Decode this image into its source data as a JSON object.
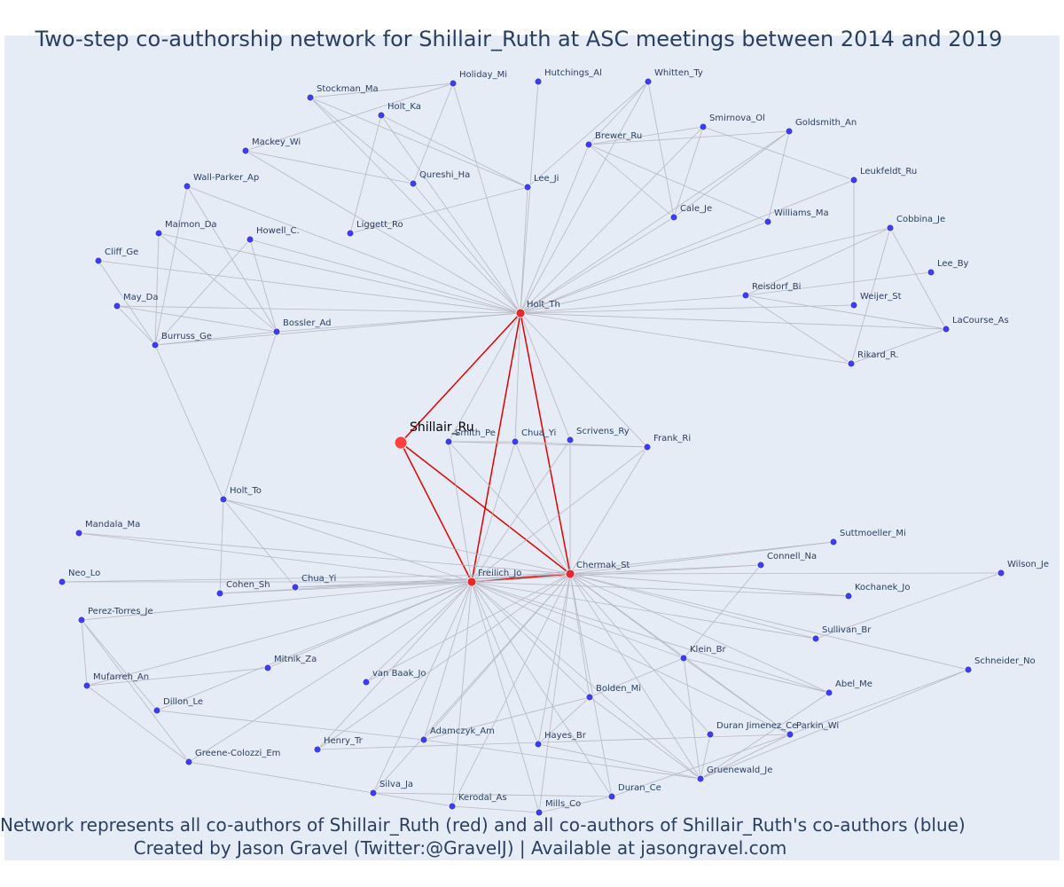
{
  "title": "Two-step co-authorship network for Shillair_Ruth at ASC meetings between 2014 and 2019",
  "captions": {
    "line1": "Network represents all co-authors of Shillair_Ruth (red) and all co-authors of Shillair_Ruth's co-authors (blue)",
    "line2": "Created by Jason Gravel (Twitter:@GravelJ) | Available at jasongravel.com"
  },
  "colors": {
    "focal": "#ff4040",
    "coauthor": "#e8262b",
    "second_step": "#3d3df0",
    "edge": "#b7b7c4",
    "red_edge": "#e00000",
    "background": "#e5ecf6"
  },
  "nodes": [
    {
      "id": "Shillair_Ru",
      "label": "Shillair_Ru",
      "group": "focal"
    },
    {
      "id": "Holt_Th",
      "label": "Holt_Th",
      "group": "coauthor"
    },
    {
      "id": "Freilich_Jo",
      "label": "Freilich_Jo",
      "group": "coauthor"
    },
    {
      "id": "Chermak_St",
      "label": "Chermak_St",
      "group": "coauthor"
    },
    {
      "id": "Holiday_Mi",
      "label": "Holiday_Mi",
      "group": "second"
    },
    {
      "id": "Hutchings_Al",
      "label": "Hutchings_Al",
      "group": "second"
    },
    {
      "id": "Whitten_Ty",
      "label": "Whitten_Ty",
      "group": "second"
    },
    {
      "id": "Stockman_Ma",
      "label": "Stockman_Ma",
      "group": "second"
    },
    {
      "id": "Holt_Ka",
      "label": "Holt_Ka",
      "group": "second"
    },
    {
      "id": "Smirnova_Ol",
      "label": "Smirnova_Ol",
      "group": "second"
    },
    {
      "id": "Goldsmith_An",
      "label": "Goldsmith_An",
      "group": "second"
    },
    {
      "id": "Brewer_Ru",
      "label": "Brewer_Ru",
      "group": "second"
    },
    {
      "id": "Mackey_Wi",
      "label": "Mackey_Wi",
      "group": "second"
    },
    {
      "id": "Qureshi_Ha",
      "label": "Qureshi_Ha",
      "group": "second"
    },
    {
      "id": "Lee_Ji",
      "label": "Lee_Ji",
      "group": "second"
    },
    {
      "id": "Leukfeldt_Ru",
      "label": "Leukfeldt_Ru",
      "group": "second"
    },
    {
      "id": "Wall-Parker_Ap",
      "label": "Wall-Parker_Ap",
      "group": "second"
    },
    {
      "id": "Cale_Je",
      "label": "Cale_Je",
      "group": "second"
    },
    {
      "id": "Williams_Ma",
      "label": "Williams_Ma",
      "group": "second"
    },
    {
      "id": "Maimon_Da",
      "label": "Maimon_Da",
      "group": "second"
    },
    {
      "id": "Liggett_Ro",
      "label": "Liggett_Ro",
      "group": "second"
    },
    {
      "id": "Howell_C",
      "label": "Howell_C.",
      "group": "second"
    },
    {
      "id": "Cobbina_Je",
      "label": "Cobbina_Je",
      "group": "second"
    },
    {
      "id": "Cliff_Ge",
      "label": "Cliff_Ge",
      "group": "second"
    },
    {
      "id": "Lee_By",
      "label": "Lee_By",
      "group": "second"
    },
    {
      "id": "Reisdorf_Bi",
      "label": "Reisdorf_Bi",
      "group": "second"
    },
    {
      "id": "May_Da",
      "label": "May_Da",
      "group": "second"
    },
    {
      "id": "Weijer_St",
      "label": "Weijer_St",
      "group": "second"
    },
    {
      "id": "Bossler_Ad",
      "label": "Bossler_Ad",
      "group": "second"
    },
    {
      "id": "LaCourse_As",
      "label": "LaCourse_As",
      "group": "second"
    },
    {
      "id": "Burruss_Ge",
      "label": "Burruss_Ge",
      "group": "second"
    },
    {
      "id": "Rikard_R",
      "label": "Rikard_R.",
      "group": "second"
    },
    {
      "id": "Smith_Pe",
      "label": "Smith_Pe",
      "group": "second"
    },
    {
      "id": "Chua_Yi_a",
      "label": "Chua_Yi",
      "group": "second"
    },
    {
      "id": "Scrivens_Ry",
      "label": "Scrivens_Ry",
      "group": "second"
    },
    {
      "id": "Frank_Ri",
      "label": "Frank_Ri",
      "group": "second"
    },
    {
      "id": "Holt_To",
      "label": "Holt_To",
      "group": "second"
    },
    {
      "id": "Mandala_Ma",
      "label": "Mandala_Ma",
      "group": "second"
    },
    {
      "id": "Suttmoeller_Mi",
      "label": "Suttmoeller_Mi",
      "group": "second"
    },
    {
      "id": "Connell_Na",
      "label": "Connell_Na",
      "group": "second"
    },
    {
      "id": "Wilson_Je",
      "label": "Wilson_Je",
      "group": "second"
    },
    {
      "id": "Neo_Lo",
      "label": "Neo_Lo",
      "group": "second"
    },
    {
      "id": "Cohen_Sh",
      "label": "Cohen_Sh",
      "group": "second"
    },
    {
      "id": "Chua_Yi_b",
      "label": "Chua_Yi",
      "group": "second"
    },
    {
      "id": "Kochanek_Jo",
      "label": "Kochanek_Jo",
      "group": "second"
    },
    {
      "id": "Perez-Torres_Je",
      "label": "Perez-Torres_Je",
      "group": "second"
    },
    {
      "id": "Sullivan_Br",
      "label": "Sullivan_Br",
      "group": "second"
    },
    {
      "id": "Klein_Br",
      "label": "Klein_Br",
      "group": "second"
    },
    {
      "id": "Mitnik_Za",
      "label": "Mitnik_Za",
      "group": "second"
    },
    {
      "id": "Schneider_No",
      "label": "Schneider_No",
      "group": "second"
    },
    {
      "id": "Mufarreh_An",
      "label": "Mufarreh_An",
      "group": "second"
    },
    {
      "id": "van_Baak_Jo",
      "label": "van Baak_Jo",
      "group": "second"
    },
    {
      "id": "Abel_Me",
      "label": "Abel_Me",
      "group": "second"
    },
    {
      "id": "Bolden_Mi",
      "label": "Bolden_Mi",
      "group": "second"
    },
    {
      "id": "Dillon_Le",
      "label": "Dillon_Le",
      "group": "second"
    },
    {
      "id": "Adamczyk_Am",
      "label": "Adamczyk_Am",
      "group": "second"
    },
    {
      "id": "Duran_Jimenez_Ce",
      "label": "Duran Jimenez_Ce",
      "group": "second"
    },
    {
      "id": "Parkin_Wi",
      "label": "Parkin_Wi",
      "group": "second"
    },
    {
      "id": "Hayes_Br",
      "label": "Hayes_Br",
      "group": "second"
    },
    {
      "id": "Henry_Tr",
      "label": "Henry_Tr",
      "group": "second"
    },
    {
      "id": "Greene-Colozzi_Em",
      "label": "Greene-Colozzi_Em",
      "group": "second"
    },
    {
      "id": "Gruenewald_Je",
      "label": "Gruenewald_Je",
      "group": "second"
    },
    {
      "id": "Silva_Ja",
      "label": "Silva_Ja",
      "group": "second"
    },
    {
      "id": "Duran_Ce",
      "label": "Duran_Ce",
      "group": "second"
    },
    {
      "id": "Kerodal_As",
      "label": "Kerodal_As",
      "group": "second"
    },
    {
      "id": "Mills_Co",
      "label": "Mills_Co",
      "group": "second"
    }
  ],
  "edges": [
    [
      "Shillair_Ru",
      "Holt_Th"
    ],
    [
      "Shillair_Ru",
      "Freilich_Jo"
    ],
    [
      "Shillair_Ru",
      "Chermak_St"
    ],
    [
      "Holt_Th",
      "Freilich_Jo"
    ],
    [
      "Holt_Th",
      "Chermak_St"
    ],
    [
      "Freilich_Jo",
      "Chermak_St"
    ],
    [
      "Holt_Th",
      "Holiday_Mi"
    ],
    [
      "Holt_Th",
      "Hutchings_Al"
    ],
    [
      "Holt_Th",
      "Whitten_Ty"
    ],
    [
      "Holt_Th",
      "Stockman_Ma"
    ],
    [
      "Holt_Th",
      "Holt_Ka"
    ],
    [
      "Holt_Th",
      "Smirnova_Ol"
    ],
    [
      "Holt_Th",
      "Goldsmith_An"
    ],
    [
      "Holt_Th",
      "Brewer_Ru"
    ],
    [
      "Holt_Th",
      "Mackey_Wi"
    ],
    [
      "Holt_Th",
      "Qureshi_Ha"
    ],
    [
      "Holt_Th",
      "Lee_Ji"
    ],
    [
      "Holt_Th",
      "Wall-Parker_Ap"
    ],
    [
      "Holt_Th",
      "Cale_Je"
    ],
    [
      "Holt_Th",
      "Williams_Ma"
    ],
    [
      "Holt_Th",
      "Maimon_Da"
    ],
    [
      "Holt_Th",
      "Howell_C"
    ],
    [
      "Holt_Th",
      "Cliff_Ge"
    ],
    [
      "Holt_Th",
      "Reisdorf_Bi"
    ],
    [
      "Holt_Th",
      "May_Da"
    ],
    [
      "Holt_Th",
      "Weijer_St"
    ],
    [
      "Holt_Th",
      "Bossler_Ad"
    ],
    [
      "Holt_Th",
      "LaCourse_As"
    ],
    [
      "Holt_Th",
      "Burruss_Ge"
    ],
    [
      "Holt_Th",
      "Rikard_R"
    ],
    [
      "Holt_Th",
      "Smith_Pe"
    ],
    [
      "Holt_Th",
      "Chua_Yi_a"
    ],
    [
      "Holt_Th",
      "Scrivens_Ry"
    ],
    [
      "Holt_Th",
      "Frank_Ri"
    ],
    [
      "Holt_Th",
      "Leukfeldt_Ru"
    ],
    [
      "Holt_Th",
      "Cobbina_Je"
    ],
    [
      "Holiday_Mi",
      "Stockman_Ma"
    ],
    [
      "Holiday_Mi",
      "Mackey_Wi"
    ],
    [
      "Holiday_Mi",
      "Qureshi_Ha"
    ],
    [
      "Stockman_Ma",
      "Qureshi_Ha"
    ],
    [
      "Stockman_Ma",
      "Lee_Ji"
    ],
    [
      "Holt_Ka",
      "Liggett_Ro"
    ],
    [
      "Holt_Ka",
      "Lee_Ji"
    ],
    [
      "Mackey_Wi",
      "Qureshi_Ha"
    ],
    [
      "Lee_Ji",
      "Liggett_Ro"
    ],
    [
      "Whitten_Ty",
      "Brewer_Ru"
    ],
    [
      "Whitten_Ty",
      "Cale_Je"
    ],
    [
      "Whitten_Ty",
      "Lee_Ji"
    ],
    [
      "Smirnova_Ol",
      "Brewer_Ru"
    ],
    [
      "Smirnova_Ol",
      "Cale_Je"
    ],
    [
      "Smirnova_Ol",
      "Leukfeldt_Ru"
    ],
    [
      "Goldsmith_An",
      "Brewer_Ru"
    ],
    [
      "Goldsmith_An",
      "Williams_Ma"
    ],
    [
      "Goldsmith_An",
      "Cale_Je"
    ],
    [
      "Brewer_Ru",
      "Williams_Ma"
    ],
    [
      "Brewer_Ru",
      "Cale_Je"
    ],
    [
      "Leukfeldt_Ru",
      "Weijer_St"
    ],
    [
      "Cobbina_Je",
      "Reisdorf_Bi"
    ],
    [
      "Cobbina_Je",
      "LaCourse_As"
    ],
    [
      "Cobbina_Je",
      "Rikard_R"
    ],
    [
      "Reisdorf_Bi",
      "Lee_By"
    ],
    [
      "Reisdorf_Bi",
      "LaCourse_As"
    ],
    [
      "Reisdorf_Bi",
      "Rikard_R"
    ],
    [
      "Rikard_R",
      "LaCourse_As"
    ],
    [
      "Wall-Parker_Ap",
      "Burruss_Ge"
    ],
    [
      "Wall-Parker_Ap",
      "Bossler_Ad"
    ],
    [
      "Maimon_Da",
      "Burruss_Ge"
    ],
    [
      "Maimon_Da",
      "Bossler_Ad"
    ],
    [
      "Howell_C",
      "Bossler_Ad"
    ],
    [
      "Howell_C",
      "Burruss_Ge"
    ],
    [
      "Cliff_Ge",
      "Burruss_Ge"
    ],
    [
      "May_Da",
      "Burruss_Ge"
    ],
    [
      "May_Da",
      "Bossler_Ad"
    ],
    [
      "Bossler_Ad",
      "Burruss_Ge"
    ],
    [
      "Bossler_Ad",
      "Holt_To"
    ],
    [
      "Burruss_Ge",
      "Holt_To"
    ],
    [
      "Smith_Pe",
      "Frank_Ri"
    ],
    [
      "Chua_Yi_a",
      "Frank_Ri"
    ],
    [
      "Smith_Pe",
      "Chua_Yi_a"
    ],
    [
      "Scrivens_Ry",
      "Chermak_St"
    ],
    [
      "Freilich_Jo",
      "Smith_Pe"
    ],
    [
      "Freilich_Jo",
      "Chua_Yi_a"
    ],
    [
      "Freilich_Jo",
      "Scrivens_Ry"
    ],
    [
      "Freilich_Jo",
      "Frank_Ri"
    ],
    [
      "Chermak_St",
      "Smith_Pe"
    ],
    [
      "Chermak_St",
      "Chua_Yi_a"
    ],
    [
      "Chermak_St",
      "Frank_Ri"
    ],
    [
      "Holt_To",
      "Freilich_Jo"
    ],
    [
      "Holt_To",
      "Chermak_St"
    ],
    [
      "Holt_To",
      "Cohen_Sh"
    ],
    [
      "Holt_To",
      "Chua_Yi_b"
    ],
    [
      "Freilich_Jo",
      "Mandala_Ma"
    ],
    [
      "Freilich_Jo",
      "Neo_Lo"
    ],
    [
      "Freilich_Jo",
      "Cohen_Sh"
    ],
    [
      "Freilich_Jo",
      "Chua_Yi_b"
    ],
    [
      "Freilich_Jo",
      "Perez-Torres_Je"
    ],
    [
      "Freilich_Jo",
      "Mufarreh_An"
    ],
    [
      "Freilich_Jo",
      "Mitnik_Za"
    ],
    [
      "Freilich_Jo",
      "van_Baak_Jo"
    ],
    [
      "Freilich_Jo",
      "Dillon_Le"
    ],
    [
      "Freilich_Jo",
      "Greene-Colozzi_Em"
    ],
    [
      "Freilich_Jo",
      "Henry_Tr"
    ],
    [
      "Freilich_Jo",
      "Adamczyk_Am"
    ],
    [
      "Freilich_Jo",
      "Silva_Ja"
    ],
    [
      "Freilich_Jo",
      "Kerodal_As"
    ],
    [
      "Freilich_Jo",
      "Mills_Co"
    ],
    [
      "Freilich_Jo",
      "Hayes_Br"
    ],
    [
      "Freilich_Jo",
      "Bolden_Mi"
    ],
    [
      "Freilich_Jo",
      "Duran_Ce"
    ],
    [
      "Freilich_Jo",
      "Gruenewald_Je"
    ],
    [
      "Freilich_Jo",
      "Klein_Br"
    ],
    [
      "Freilich_Jo",
      "Suttmoeller_Mi"
    ],
    [
      "Freilich_Jo",
      "Connell_Na"
    ],
    [
      "Freilich_Jo",
      "Kochanek_Jo"
    ],
    [
      "Freilich_Jo",
      "Sullivan_Br"
    ],
    [
      "Freilich_Jo",
      "Parkin_Wi"
    ],
    [
      "Freilich_Jo",
      "Abel_Me"
    ],
    [
      "Chermak_St",
      "Suttmoeller_Mi"
    ],
    [
      "Chermak_St",
      "Connell_Na"
    ],
    [
      "Chermak_St",
      "Wilson_Je"
    ],
    [
      "Chermak_St",
      "Kochanek_Jo"
    ],
    [
      "Chermak_St",
      "Sullivan_Br"
    ],
    [
      "Chermak_St",
      "Klein_Br"
    ],
    [
      "Chermak_St",
      "Schneider_No"
    ],
    [
      "Chermak_St",
      "Abel_Me"
    ],
    [
      "Chermak_St",
      "Bolden_Mi"
    ],
    [
      "Chermak_St",
      "Duran_Jimenez_Ce"
    ],
    [
      "Chermak_St",
      "Parkin_Wi"
    ],
    [
      "Chermak_St",
      "Hayes_Br"
    ],
    [
      "Chermak_St",
      "Gruenewald_Je"
    ],
    [
      "Chermak_St",
      "Duran_Ce"
    ],
    [
      "Chermak_St",
      "Mills_Co"
    ],
    [
      "Chermak_St",
      "Kerodal_As"
    ],
    [
      "Chermak_St",
      "Silva_Ja"
    ],
    [
      "Chermak_St",
      "Adamczyk_Am"
    ],
    [
      "Chermak_St",
      "Henry_Tr"
    ],
    [
      "Chermak_St",
      "van_Baak_Jo"
    ],
    [
      "Perez-Torres_Je",
      "Mufarreh_An"
    ],
    [
      "Perez-Torres_Je",
      "Greene-Colozzi_Em"
    ],
    [
      "Perez-Torres_Je",
      "Dillon_Le"
    ],
    [
      "Mufarreh_An",
      "Greene-Colozzi_Em"
    ],
    [
      "Mufarreh_An",
      "Mitnik_Za"
    ],
    [
      "Dillon_Le",
      "Adamczyk_Am"
    ],
    [
      "Greene-Colozzi_Em",
      "Silva_Ja"
    ],
    [
      "Silva_Ja",
      "Duran_Ce"
    ],
    [
      "Silva_Ja",
      "Kerodal_As"
    ],
    [
      "Kerodal_As",
      "Mills_Co"
    ],
    [
      "Mills_Co",
      "Duran_Ce"
    ],
    [
      "Duran_Ce",
      "Parkin_Wi"
    ],
    [
      "Adamczyk_Am",
      "Gruenewald_Je"
    ],
    [
      "Adamczyk_Am",
      "Bolden_Mi"
    ],
    [
      "Henry_Tr",
      "Parkin_Wi"
    ],
    [
      "Hayes_Br",
      "Bolden_Mi"
    ],
    [
      "Hayes_Br",
      "Gruenewald_Je"
    ],
    [
      "Bolden_Mi",
      "Gruenewald_Je"
    ],
    [
      "Klein_Br",
      "Abel_Me"
    ],
    [
      "Klein_Br",
      "Parkin_Wi"
    ],
    [
      "Klein_Br",
      "Gruenewald_Je"
    ],
    [
      "Klein_Br",
      "Bolden_Mi"
    ],
    [
      "Klein_Br",
      "Connell_Na"
    ],
    [
      "Sullivan_Br",
      "Wilson_Je"
    ],
    [
      "Parkin_Wi",
      "Schneider_No"
    ],
    [
      "Gruenewald_Je",
      "Schneider_No"
    ],
    [
      "Gruenewald_Je",
      "Abel_Me"
    ],
    [
      "Duran_Jimenez_Ce",
      "Gruenewald_Je"
    ],
    [
      "Gruenewald_Je",
      "Parkin_Wi"
    ],
    [
      "Mandala_Ma",
      "Chermak_St"
    ],
    [
      "Neo_Lo",
      "Chermak_St"
    ],
    [
      "Cohen_Sh",
      "Chermak_St"
    ],
    [
      "Chua_Yi_b",
      "Chermak_St"
    ]
  ]
}
